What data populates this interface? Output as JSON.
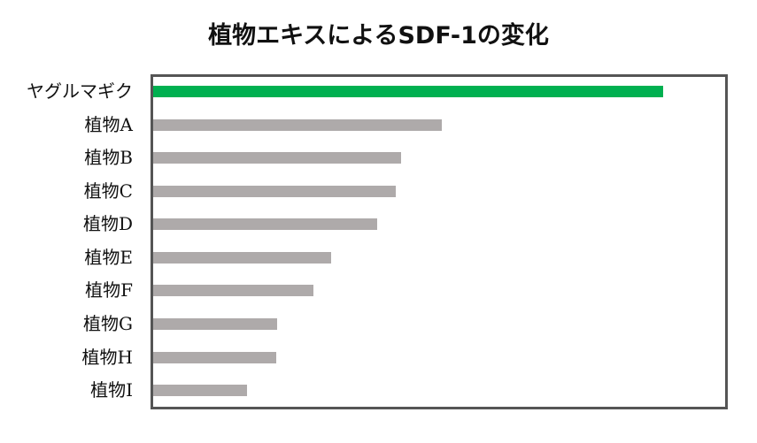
{
  "chart_data": {
    "type": "bar",
    "orientation": "horizontal",
    "title": "植物エキスによるSDF-1の変化",
    "xlabel": "",
    "ylabel": "",
    "grid": false,
    "legend": null,
    "axis_ticks_shown": false,
    "value_units": "relative bar length (px, no axis scale shown)",
    "categories": [
      "ヤグルマギク",
      "植物A",
      "植物B",
      "植物C",
      "植物D",
      "植物E",
      "植物F",
      "植物G",
      "植物H",
      "植物I"
    ],
    "values": [
      576,
      326,
      280,
      274,
      253,
      201,
      181,
      140,
      139,
      106
    ],
    "colors": [
      "#00b050",
      "#aeaaaa",
      "#aeaaaa",
      "#aeaaaa",
      "#aeaaaa",
      "#aeaaaa",
      "#aeaaaa",
      "#aeaaaa",
      "#aeaaaa",
      "#aeaaaa"
    ],
    "xlim": [
      0,
      645
    ]
  },
  "title": "植物エキスによるSDF-1の変化",
  "labels": [
    "ヤグルマギク",
    "植物A",
    "植物B",
    "植物C",
    "植物D",
    "植物E",
    "植物F",
    "植物G",
    "植物H",
    "植物I"
  ]
}
